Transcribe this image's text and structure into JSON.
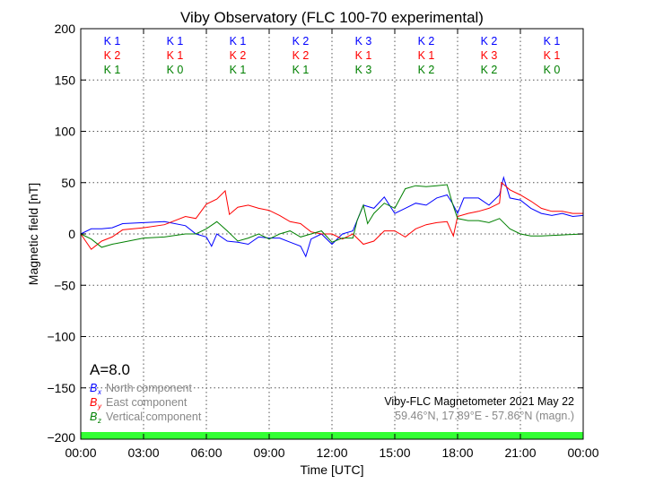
{
  "chart_data": {
    "type": "line",
    "title": "Viby Observatory (FLC 100-70 experimental)",
    "xlabel": "Time [UTC]",
    "ylabel": "Magnetic field [nT]",
    "xlim": [
      0,
      24
    ],
    "ylim": [
      -200,
      200
    ],
    "x_ticks": [
      0,
      3,
      6,
      9,
      12,
      15,
      18,
      21,
      24
    ],
    "x_tick_labels": [
      "00:00",
      "03:00",
      "06:00",
      "09:00",
      "12:00",
      "15:00",
      "18:00",
      "21:00",
      "00:00"
    ],
    "y_ticks": [
      200,
      150,
      100,
      50,
      0,
      -50,
      -100,
      -150,
      -200
    ],
    "y_tick_labels": [
      "200",
      "150",
      "100",
      "50",
      "0",
      "−50",
      "−100",
      "−150",
      "−200"
    ],
    "grid": true,
    "series": [
      {
        "name": "North component",
        "symbol": "B",
        "sub": "x",
        "color": "#0000ff",
        "x": [
          0,
          0.5,
          1,
          1.5,
          2,
          3,
          4,
          5,
          5.5,
          6,
          6.25,
          6.5,
          7,
          7.5,
          8,
          8.5,
          9,
          9.5,
          10,
          10.5,
          10.75,
          11,
          11.5,
          12,
          12.5,
          13,
          13.5,
          14,
          14.5,
          15,
          15.5,
          16,
          16.5,
          17,
          17.5,
          17.75,
          18,
          18.3,
          18.5,
          19,
          19.5,
          20,
          20.2,
          20.5,
          21,
          21.5,
          22,
          22.5,
          23,
          23.5,
          24
        ],
        "y": [
          0,
          5,
          5,
          6,
          10,
          11,
          12,
          8,
          0,
          -3,
          -12,
          0,
          -7,
          -8,
          -10,
          -3,
          -4,
          -4,
          -8,
          -12,
          -22,
          -5,
          0,
          -10,
          0,
          3,
          28,
          25,
          36,
          20,
          25,
          30,
          28,
          35,
          38,
          30,
          20,
          35,
          35,
          35,
          28,
          38,
          55,
          35,
          33,
          25,
          20,
          18,
          20,
          17,
          18
        ]
      },
      {
        "name": "East component",
        "symbol": "B",
        "sub": "y",
        "color": "#ff0000",
        "x": [
          0,
          0.5,
          1,
          1.5,
          2,
          3,
          4,
          5,
          5.5,
          6,
          6.5,
          6.9,
          7.1,
          7.5,
          8,
          8.5,
          9,
          9.5,
          10,
          10.5,
          11,
          11.5,
          12,
          12.5,
          13,
          13.5,
          14,
          14.5,
          15,
          15.5,
          16,
          16.5,
          17,
          17.5,
          17.8,
          18,
          18.5,
          19,
          19.5,
          20,
          20.1,
          20.5,
          21,
          21.5,
          22,
          22.5,
          23,
          23.5,
          24
        ],
        "y": [
          0,
          -15,
          -7,
          -3,
          4,
          6,
          9,
          17,
          15,
          29,
          34,
          42,
          19,
          26,
          28,
          25,
          23,
          18,
          12,
          10,
          2,
          0,
          0,
          -5,
          0,
          -10,
          -7,
          3,
          3,
          -3,
          5,
          9,
          11,
          12,
          -2,
          17,
          20,
          22,
          25,
          30,
          50,
          43,
          38,
          32,
          25,
          22,
          22,
          20,
          20
        ]
      },
      {
        "name": "Vertical component",
        "symbol": "B",
        "sub": "z",
        "color": "#008000",
        "x": [
          0,
          0.5,
          1,
          1.5,
          2,
          3,
          4,
          5,
          5.5,
          6,
          6.5,
          7,
          7.5,
          8,
          8.5,
          9,
          9.5,
          10,
          10.5,
          11,
          11.5,
          12,
          12.5,
          13,
          13.2,
          13.5,
          13.7,
          14,
          14.5,
          15,
          15.5,
          16,
          16.5,
          17,
          17.5,
          17.75,
          18,
          18.5,
          19,
          19.5,
          20,
          20.5,
          21,
          21.5,
          22,
          23,
          24
        ],
        "y": [
          0,
          -5,
          -13,
          -10,
          -8,
          -4,
          -3,
          0,
          0,
          5,
          12,
          3,
          -7,
          -4,
          0,
          -5,
          0,
          3,
          -3,
          0,
          3,
          -8,
          -4,
          -4,
          13,
          28,
          10,
          20,
          30,
          25,
          44,
          47,
          46,
          47,
          48,
          30,
          15,
          13,
          13,
          11,
          15,
          5,
          0,
          -2,
          -2,
          -1,
          0
        ]
      }
    ],
    "k_index": {
      "rows": [
        {
          "component": "x",
          "color": "#0000ff",
          "labels": [
            "K 1",
            "K 1",
            "K 1",
            "K 2",
            "K 3",
            "K 2",
            "K 2",
            "K 1"
          ]
        },
        {
          "component": "y",
          "color": "#ff0000",
          "labels": [
            "K 2",
            "K 1",
            "K 2",
            "K 2",
            "K 1",
            "K 1",
            "K 3",
            "K 1"
          ]
        },
        {
          "component": "z",
          "color": "#008000",
          "labels": [
            "K 1",
            "K 0",
            "K 1",
            "K 1",
            "K 3",
            "K 2",
            "K 2",
            "K 0"
          ]
        }
      ]
    },
    "a_index": "A=8.0",
    "annotation_station": "Viby-FLC Magnetometer 2021 May 22",
    "annotation_coords": "59.46°N, 17.89°E - 57.86°N (magn.)",
    "activity_bar_color": "#33ff33"
  }
}
